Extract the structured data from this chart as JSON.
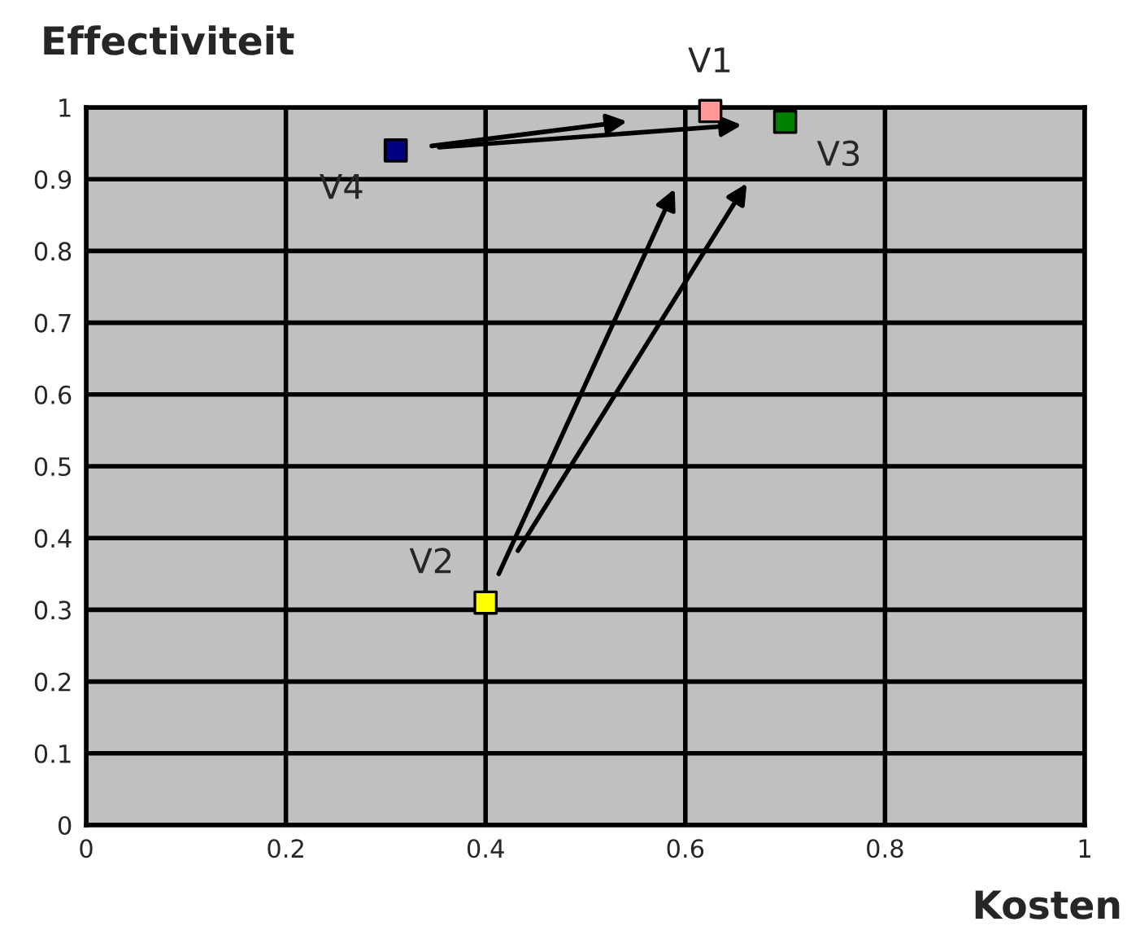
{
  "chart_data": {
    "type": "scatter",
    "xlabel": "Kosten",
    "ylabel": "Effectiviteit",
    "series": [
      {
        "name": "V1",
        "color": "#ff9999",
        "x": [
          0.625
        ],
        "values": [
          0.995
        ]
      },
      {
        "name": "V2",
        "color": "#ffff00",
        "x": [
          0.4
        ],
        "values": [
          0.31
        ]
      },
      {
        "name": "V3",
        "color": "#008000",
        "x": [
          0.7
        ],
        "values": [
          0.98
        ]
      },
      {
        "name": "V4",
        "color": "#000080",
        "x": [
          0.31
        ],
        "values": [
          0.94
        ]
      }
    ],
    "xlim": [
      0,
      1
    ],
    "ylim": [
      0,
      1
    ],
    "xticks": [
      0,
      0.2,
      0.4,
      0.6,
      0.8,
      1
    ],
    "yticks": [
      0,
      0.1,
      0.2,
      0.3,
      0.4,
      0.5,
      0.6,
      0.7,
      0.8,
      0.9,
      1
    ],
    "grid": true,
    "marker": "square",
    "legend": false
  }
}
